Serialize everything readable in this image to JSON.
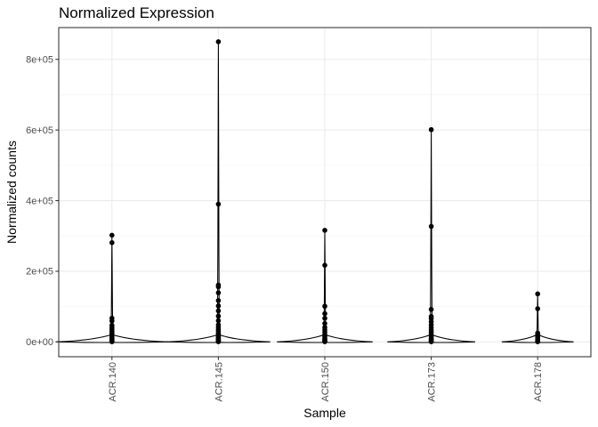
{
  "chart_data": {
    "type": "violin",
    "title": "Normalized Expression",
    "xlabel": "Sample",
    "ylabel": "Normalized counts",
    "categories": [
      "ACR.140",
      "ACR.145",
      "ACR.150",
      "ACR.173",
      "ACR.178"
    ],
    "ylim": [
      -42000,
      890000
    ],
    "yticks": [
      0,
      200000,
      400000,
      600000,
      800000
    ],
    "ytick_labels": [
      "0e+00",
      "2e+05",
      "4e+05",
      "6e+05",
      "8e+05"
    ],
    "grid": true,
    "violin_max": [
      302000,
      850000,
      316000,
      601000,
      136000
    ],
    "violin_halfwidth_rel": [
      0.7,
      0.65,
      0.6,
      0.55,
      0.45
    ],
    "points": [
      [
        302000,
        281000,
        67000,
        59000,
        47000,
        41000,
        36000,
        31000,
        27000,
        23000,
        19000,
        16000,
        13000,
        10000,
        8000,
        6000,
        4000,
        3000,
        2000,
        1000,
        500
      ],
      [
        850000,
        390000,
        161000,
        156000,
        139000,
        117000,
        102000,
        88000,
        73000,
        60000,
        48000,
        41000,
        35000,
        30000,
        25000,
        21000,
        17000,
        14000,
        11000,
        8000,
        6000,
        4000,
        2500,
        1500,
        500
      ],
      [
        316000,
        217000,
        101000,
        80000,
        67000,
        52000,
        41000,
        34000,
        27000,
        20000,
        15000,
        10000,
        7000,
        4000,
        2000,
        500
      ],
      [
        601000,
        327000,
        92000,
        72000,
        66000,
        57000,
        48000,
        40000,
        33000,
        27000,
        21000,
        16000,
        12000,
        9000,
        6000,
        4000,
        2000,
        500
      ],
      [
        136000,
        94000,
        25000,
        20000,
        15000,
        11000,
        8000,
        5000,
        3000,
        1500,
        500
      ]
    ]
  }
}
